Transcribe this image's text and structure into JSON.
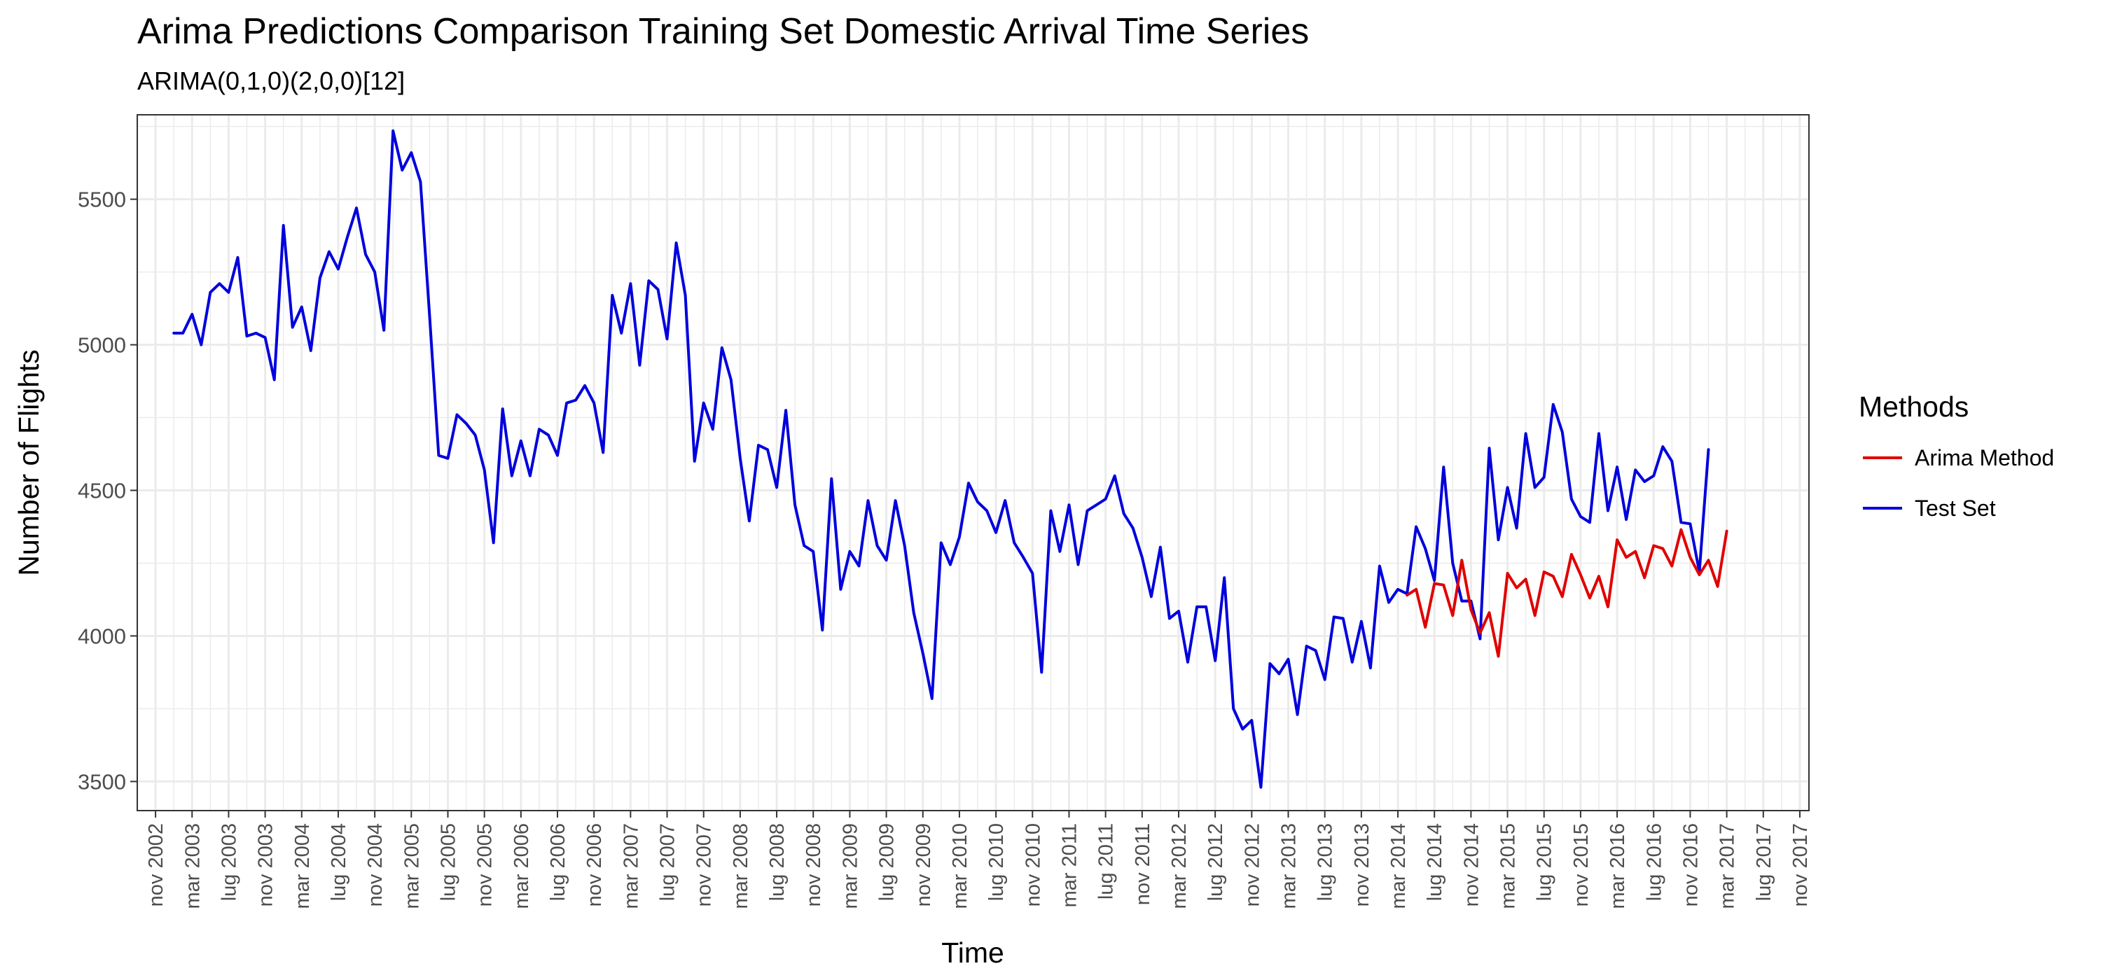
{
  "chart_data": {
    "type": "line",
    "title": "Arima Predictions Comparison Training Set Domestic Arrival Time Series",
    "subtitle": "ARIMA(0,1,0)(2,0,0)[12]",
    "xlabel": "Time",
    "ylabel": "Number of Flights",
    "xlim": [
      "2002-09",
      "2017-12"
    ],
    "ylim": [
      3400,
      5790
    ],
    "y_ticks": [
      3500,
      4000,
      4500,
      5000,
      5500
    ],
    "x_ticks": [
      "nov 2002",
      "mar 2003",
      "lug 2003",
      "nov 2003",
      "mar 2004",
      "lug 2004",
      "nov 2004",
      "mar 2005",
      "lug 2005",
      "nov 2005",
      "mar 2006",
      "lug 2006",
      "nov 2006",
      "mar 2007",
      "lug 2007",
      "nov 2007",
      "mar 2008",
      "lug 2008",
      "nov 2008",
      "mar 2009",
      "lug 2009",
      "nov 2009",
      "mar 2010",
      "lug 2010",
      "nov 2010",
      "mar 2011",
      "lug 2011",
      "nov 2011",
      "mar 2012",
      "lug 2012",
      "nov 2012",
      "mar 2013",
      "lug 2013",
      "nov 2013",
      "mar 2014",
      "lug 2014",
      "nov 2014",
      "mar 2015",
      "lug 2015",
      "nov 2015",
      "mar 2016",
      "lug 2016",
      "nov 2016",
      "mar 2017",
      "lug 2017",
      "nov 2017"
    ],
    "grid": true,
    "legend": {
      "title": "Methods",
      "position": "right"
    },
    "series": [
      {
        "name": "Test Set",
        "color": "#0000dd",
        "start": "2003-01",
        "values": [
          5040,
          5040,
          5105,
          5000,
          5180,
          5210,
          5180,
          5300,
          5030,
          5040,
          5025,
          4880,
          5410,
          5060,
          5130,
          4980,
          5230,
          5320,
          5260,
          5370,
          5470,
          5310,
          5250,
          5050,
          5735,
          5600,
          5660,
          5560,
          5100,
          4620,
          4610,
          4760,
          4730,
          4690,
          4570,
          4320,
          4780,
          4550,
          4670,
          4550,
          4710,
          4690,
          4620,
          4800,
          4810,
          4860,
          4800,
          4630,
          5170,
          5040,
          5210,
          4930,
          5220,
          5190,
          5020,
          5350,
          5170,
          4600,
          4800,
          4710,
          4990,
          4880,
          4610,
          4395,
          4655,
          4640,
          4510,
          4775,
          4450,
          4310,
          4290,
          4020,
          4540,
          4160,
          4290,
          4240,
          4465,
          4310,
          4260,
          4465,
          4310,
          4080,
          3940,
          3785,
          4320,
          4245,
          4340,
          4525,
          4460,
          4430,
          4355,
          4465,
          4320,
          4270,
          4215,
          3875,
          4430,
          4290,
          4450,
          4245,
          4430,
          4450,
          4470,
          4550,
          4420,
          4370,
          4270,
          4135,
          4305,
          4060,
          4085,
          3910,
          4100,
          4100,
          3915,
          4200,
          3750,
          3680,
          3710,
          3480,
          3905,
          3870,
          3920,
          3730,
          3965,
          3950,
          3850,
          4065,
          4060,
          3910,
          4050,
          3890,
          4240,
          4115,
          4160,
          4145,
          4375,
          4300,
          4190,
          4580,
          4250,
          4120,
          4120,
          3990,
          4645,
          4330,
          4510,
          4370,
          4695,
          4510,
          4545,
          4795,
          4700,
          4470,
          4410,
          4390,
          4695,
          4430,
          4580,
          4400,
          4570,
          4530,
          4550,
          4650,
          4600,
          4390,
          4385,
          4220,
          4640
        ]
      },
      {
        "name": "Arima Method",
        "color": "#e00000",
        "start": "2014-04",
        "values": [
          4140,
          4160,
          4030,
          4180,
          4175,
          4070,
          4260,
          4090,
          4010,
          4080,
          3930,
          4215,
          4165,
          4195,
          4070,
          4220,
          4205,
          4135,
          4280,
          4210,
          4130,
          4205,
          4100,
          4330,
          4270,
          4290,
          4200,
          4310,
          4300,
          4240,
          4365,
          4270,
          4210,
          4260,
          4170,
          4360
        ]
      }
    ]
  }
}
